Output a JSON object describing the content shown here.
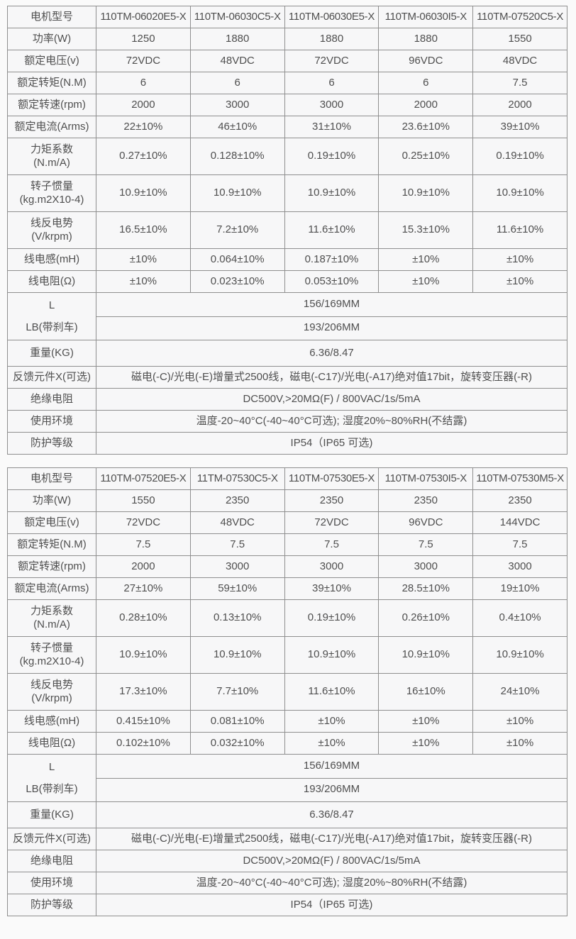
{
  "colors": {
    "background": "#fafafa",
    "table_background": "#f7f7f8",
    "border": "#8f8f8f",
    "text": "#4f4f4f"
  },
  "tables": [
    {
      "header": {
        "label": "电机型号",
        "models": [
          "110TM-06020E5-X",
          "110TM-06030C5-X",
          "110TM-06030E5-X",
          "110TM-06030I5-X",
          "110TM-07520C5-X"
        ]
      },
      "spec_rows": [
        {
          "key": "power",
          "label": "功率(W)",
          "values": [
            "1250",
            "1880",
            "1880",
            "1880",
            "1550"
          ]
        },
        {
          "key": "rated-voltage",
          "label": "额定电压(v)",
          "values": [
            "72VDC",
            "48VDC",
            "72VDC",
            "96VDC",
            "48VDC"
          ]
        },
        {
          "key": "rated-torque",
          "label": "额定转矩(N.M)",
          "values": [
            "6",
            "6",
            "6",
            "6",
            "7.5"
          ]
        },
        {
          "key": "rated-speed",
          "label": "额定转速(rpm)",
          "values": [
            "2000",
            "3000",
            "3000",
            "2000",
            "2000"
          ]
        },
        {
          "key": "rated-current",
          "label": "额定电流(Arms)",
          "values": [
            "22±10%",
            "46±10%",
            "31±10%",
            "23.6±10%",
            "39±10%"
          ]
        },
        {
          "key": "torque-constant",
          "label": "力矩系数",
          "label2": "(N.m/A)",
          "values": [
            "0.27±10%",
            "0.128±10%",
            "0.19±10%",
            "0.25±10%",
            "0.19±10%"
          ]
        },
        {
          "key": "rotor-inertia",
          "label": "转子惯量",
          "label2": "(kg.m2X10-4)",
          "values": [
            "10.9±10%",
            "10.9±10%",
            "10.9±10%",
            "10.9±10%",
            "10.9±10%"
          ]
        },
        {
          "key": "back-emf",
          "label": "线反电势",
          "label2": "(V/krpm)",
          "values": [
            "16.5±10%",
            "7.2±10%",
            "11.6±10%",
            "15.3±10%",
            "11.6±10%"
          ]
        },
        {
          "key": "line-inductance",
          "label": "线电感(mH)",
          "values": [
            "±10%",
            "0.064±10%",
            "0.187±10%",
            "±10%",
            "±10%"
          ]
        },
        {
          "key": "line-resistance",
          "label": "线电阻(Ω)",
          "values": [
            "±10%",
            "0.023±10%",
            "0.053±10%",
            "±10%",
            "±10%"
          ]
        }
      ],
      "dimension_rows": {
        "labels": [
          "L",
          "LB(带刹车)"
        ],
        "values": [
          "156/169MM",
          "193/206MM"
        ]
      },
      "weight_row": {
        "label": "重量(KG)",
        "value": "6.36/8.47"
      },
      "info_rows": [
        {
          "key": "feedback-options",
          "label": "反馈元件X(可选)",
          "value": "磁电(-C)/光电(-E)增量式2500线，磁电(-C17)/光电(-A17)绝对值17bit，旋转变压器(-R)"
        },
        {
          "key": "insulation-resistance",
          "label": "绝缘电阻",
          "value": "DC500V,>20MΩ(F) / 800VAC/1s/5mA"
        },
        {
          "key": "operating-environment",
          "label": "使用环境",
          "value": "温度-20~40°C(-40~40°C可选); 湿度20%~80%RH(不结露)"
        },
        {
          "key": "protection-rating",
          "label": "防护等级",
          "value": "IP54（IP65 可选)"
        }
      ]
    },
    {
      "header": {
        "label": "电机型号",
        "models": [
          "110TM-07520E5-X",
          "11TM-07530C5-X",
          "110TM-07530E5-X",
          "110TM-07530I5-X",
          "110TM-07530M5-X"
        ]
      },
      "spec_rows": [
        {
          "key": "power",
          "label": "功率(W)",
          "values": [
            "1550",
            "2350",
            "2350",
            "2350",
            "2350"
          ]
        },
        {
          "key": "rated-voltage",
          "label": "额定电压(v)",
          "values": [
            "72VDC",
            "48VDC",
            "72VDC",
            "96VDC",
            "144VDC"
          ]
        },
        {
          "key": "rated-torque",
          "label": "额定转矩(N.M)",
          "values": [
            "7.5",
            "7.5",
            "7.5",
            "7.5",
            "7.5"
          ]
        },
        {
          "key": "rated-speed",
          "label": "额定转速(rpm)",
          "values": [
            "2000",
            "3000",
            "3000",
            "3000",
            "3000"
          ]
        },
        {
          "key": "rated-current",
          "label": "额定电流(Arms)",
          "values": [
            "27±10%",
            "59±10%",
            "39±10%",
            "28.5±10%",
            "19±10%"
          ]
        },
        {
          "key": "torque-constant",
          "label": "力矩系数",
          "label2": "(N.m/A)",
          "values": [
            "0.28±10%",
            "0.13±10%",
            "0.19±10%",
            "0.26±10%",
            "0.4±10%"
          ]
        },
        {
          "key": "rotor-inertia",
          "label": "转子惯量",
          "label2": "(kg.m2X10-4)",
          "values": [
            "10.9±10%",
            "10.9±10%",
            "10.9±10%",
            "10.9±10%",
            "10.9±10%"
          ]
        },
        {
          "key": "back-emf",
          "label": "线反电势",
          "label2": "(V/krpm)",
          "values": [
            "17.3±10%",
            "7.7±10%",
            "11.6±10%",
            "16±10%",
            "24±10%"
          ]
        },
        {
          "key": "line-inductance",
          "label": "线电感(mH)",
          "values": [
            "0.415±10%",
            "0.081±10%",
            "±10%",
            "±10%",
            "±10%"
          ]
        },
        {
          "key": "line-resistance",
          "label": "线电阻(Ω)",
          "values": [
            "0.102±10%",
            "0.032±10%",
            "±10%",
            "±10%",
            "±10%"
          ]
        }
      ],
      "dimension_rows": {
        "labels": [
          "L",
          "LB(带刹车)"
        ],
        "values": [
          "156/169MM",
          "193/206MM"
        ]
      },
      "weight_row": {
        "label": "重量(KG)",
        "value": "6.36/8.47"
      },
      "info_rows": [
        {
          "key": "feedback-options",
          "label": "反馈元件X(可选)",
          "value": "磁电(-C)/光电(-E)增量式2500线，磁电(-C17)/光电(-A17)绝对值17bit，旋转变压器(-R)"
        },
        {
          "key": "insulation-resistance",
          "label": "绝缘电阻",
          "value": "DC500V,>20MΩ(F) / 800VAC/1s/5mA"
        },
        {
          "key": "operating-environment",
          "label": "使用环境",
          "value": "温度-20~40°C(-40~40°C可选); 湿度20%~80%RH(不结露)"
        },
        {
          "key": "protection-rating",
          "label": "防护等级",
          "value": "IP54（IP65 可选)"
        }
      ]
    }
  ]
}
